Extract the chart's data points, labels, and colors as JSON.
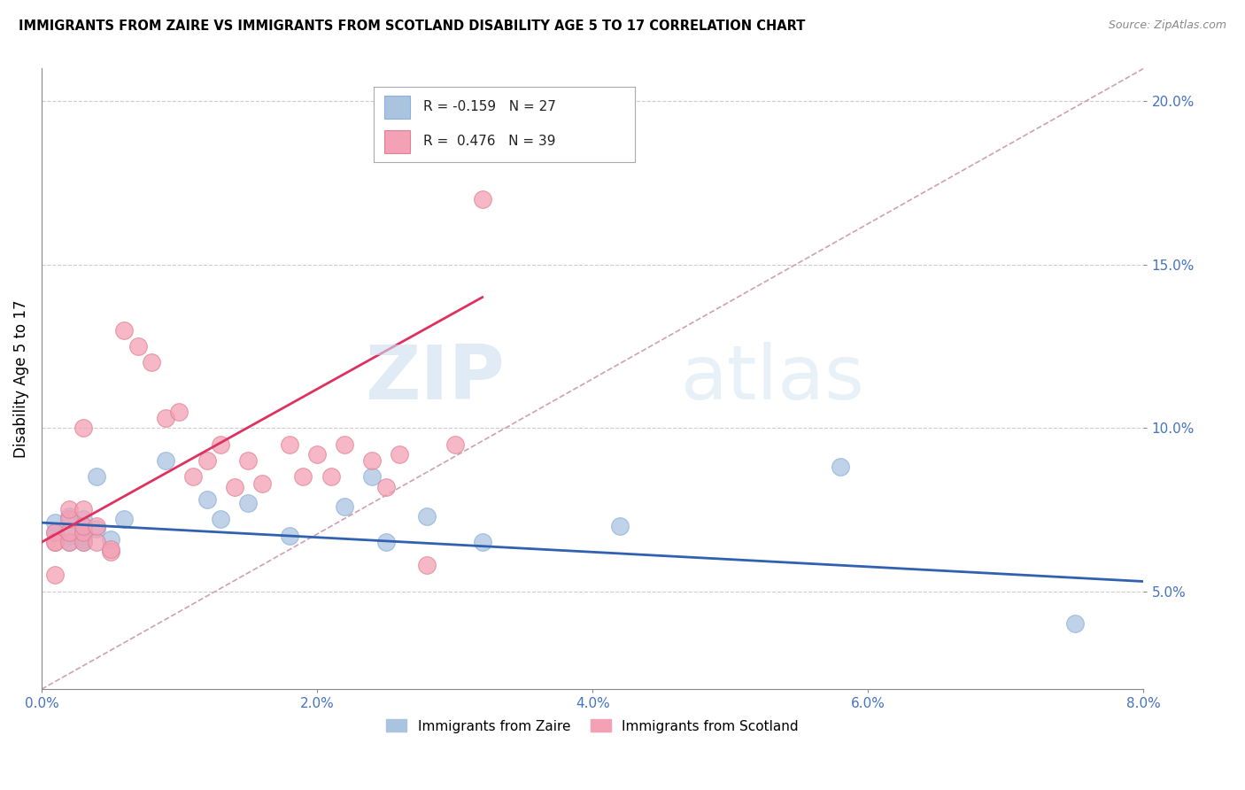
{
  "title": "IMMIGRANTS FROM ZAIRE VS IMMIGRANTS FROM SCOTLAND DISABILITY AGE 5 TO 17 CORRELATION CHART",
  "source": "Source: ZipAtlas.com",
  "xlabel": "",
  "ylabel": "Disability Age 5 to 17",
  "xlim": [
    0.0,
    0.08
  ],
  "ylim": [
    0.02,
    0.21
  ],
  "xticks": [
    0.0,
    0.02,
    0.04,
    0.06,
    0.08
  ],
  "xticklabels": [
    "0.0%",
    "2.0%",
    "4.0%",
    "6.0%",
    "8.0%"
  ],
  "yticks": [
    0.05,
    0.1,
    0.15,
    0.2
  ],
  "yticklabels": [
    "5.0%",
    "10.0%",
    "15.0%",
    "20.0%"
  ],
  "zaire_R": -0.159,
  "zaire_N": 27,
  "scotland_R": 0.476,
  "scotland_N": 39,
  "zaire_color": "#aac4e0",
  "scotland_color": "#f4a0b5",
  "zaire_line_color": "#3060b0",
  "scotland_line_color": "#e03060",
  "ref_line_color": "#d0a0b0",
  "watermark_zip": "ZIP",
  "watermark_atlas": "atlas",
  "zaire_x": [
    0.001,
    0.001,
    0.002,
    0.002,
    0.002,
    0.003,
    0.003,
    0.003,
    0.003,
    0.003,
    0.004,
    0.004,
    0.005,
    0.006,
    0.009,
    0.012,
    0.013,
    0.015,
    0.018,
    0.022,
    0.024,
    0.025,
    0.028,
    0.032,
    0.042,
    0.058,
    0.075
  ],
  "zaire_y": [
    0.068,
    0.071,
    0.065,
    0.067,
    0.073,
    0.065,
    0.066,
    0.067,
    0.07,
    0.072,
    0.069,
    0.085,
    0.066,
    0.072,
    0.09,
    0.078,
    0.072,
    0.077,
    0.067,
    0.076,
    0.085,
    0.065,
    0.073,
    0.065,
    0.07,
    0.088,
    0.04
  ],
  "scotland_x": [
    0.001,
    0.001,
    0.001,
    0.001,
    0.002,
    0.002,
    0.002,
    0.002,
    0.003,
    0.003,
    0.003,
    0.003,
    0.003,
    0.004,
    0.004,
    0.005,
    0.005,
    0.006,
    0.007,
    0.008,
    0.009,
    0.01,
    0.011,
    0.012,
    0.013,
    0.014,
    0.015,
    0.016,
    0.018,
    0.019,
    0.02,
    0.021,
    0.022,
    0.024,
    0.025,
    0.026,
    0.028,
    0.03,
    0.032
  ],
  "scotland_y": [
    0.065,
    0.068,
    0.065,
    0.055,
    0.065,
    0.068,
    0.072,
    0.075,
    0.065,
    0.068,
    0.07,
    0.075,
    0.1,
    0.065,
    0.07,
    0.062,
    0.063,
    0.13,
    0.125,
    0.12,
    0.103,
    0.105,
    0.085,
    0.09,
    0.095,
    0.082,
    0.09,
    0.083,
    0.095,
    0.085,
    0.092,
    0.085,
    0.095,
    0.09,
    0.082,
    0.092,
    0.058,
    0.095,
    0.17
  ],
  "zaire_line_x0": 0.0,
  "zaire_line_y0": 0.071,
  "zaire_line_x1": 0.08,
  "zaire_line_y1": 0.053,
  "scotland_line_x0": 0.0,
  "scotland_line_y0": 0.065,
  "scotland_line_x1": 0.032,
  "scotland_line_y1": 0.14
}
